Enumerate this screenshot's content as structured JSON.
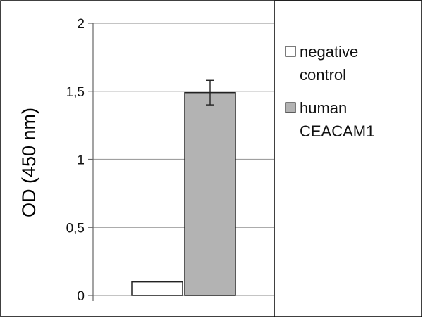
{
  "chart_data": {
    "type": "bar",
    "ylabel": "OD (450 nm)",
    "xlabel": "",
    "title": "",
    "ylim": [
      0,
      2
    ],
    "yticks": [
      0,
      0.5,
      1,
      1.5,
      2
    ],
    "ytick_labels": [
      "0",
      "0,5",
      "1",
      "1,5",
      "2"
    ],
    "series": [
      {
        "name": "negative control",
        "values": [
          0.1
        ],
        "error": [
          0
        ],
        "color": "#ffffff"
      },
      {
        "name": "human CEACAM1",
        "values": [
          1.49
        ],
        "error": [
          0.09
        ],
        "color": "#b3b3b3"
      }
    ],
    "legend": {
      "position": "right",
      "entries": [
        {
          "lines": [
            "negative",
            "control"
          ],
          "color": "#ffffff"
        },
        {
          "lines": [
            "human",
            "CEACAM1"
          ],
          "color": "#b3b3b3"
        }
      ]
    },
    "grid": true
  }
}
